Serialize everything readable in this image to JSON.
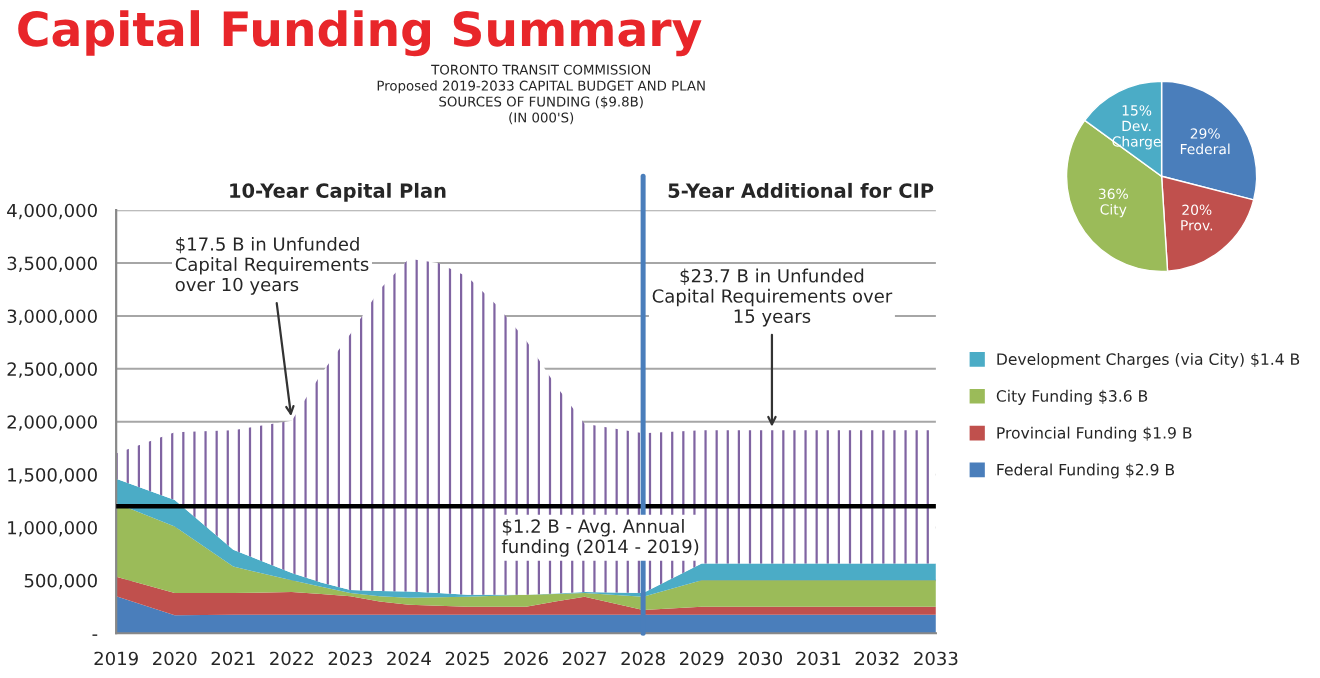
{
  "chart_data": [
    {
      "type": "area",
      "title": "Capital Funding Summary",
      "subtitle": "TORONTO TRANSIT COMMISSION\nProposed 2019-2033 CAPITAL BUDGET AND PLAN\nSOURCES OF FUNDING ($9.8B)\n(IN 000'S)",
      "stacked": true,
      "x": [
        2019,
        2020,
        2021,
        2022,
        2022.5,
        2023,
        2023.5,
        2024,
        2024.5,
        2025,
        2025.5,
        2026,
        2026.5,
        2027,
        2028,
        2029,
        2030,
        2031,
        2032,
        2033
      ],
      "series": [
        {
          "name": "Federal Funding $2.9 B",
          "color": "#4a7ebb",
          "values": [
            350000,
            170000,
            175000,
            175000,
            175000,
            175000,
            175000,
            175000,
            175000,
            175000,
            175000,
            175000,
            175000,
            175000,
            175000,
            175000,
            175000,
            175000,
            175000,
            175000
          ]
        },
        {
          "name": "Provincial Funding $1.9 B",
          "color": "#c0504d",
          "values": [
            185000,
            210000,
            205000,
            215000,
            195000,
            175000,
            125000,
            95000,
            85000,
            75000,
            75000,
            75000,
            125000,
            170000,
            45000,
            75000,
            75000,
            75000,
            75000,
            75000
          ]
        },
        {
          "name": "City Funding $3.6 B",
          "color": "#9bbb59",
          "values": [
            695000,
            630000,
            250000,
            110000,
            70000,
            30000,
            50000,
            65000,
            80000,
            95000,
            105000,
            115000,
            70000,
            35000,
            125000,
            250000,
            250000,
            250000,
            250000,
            250000
          ]
        },
        {
          "name": "Development Charges (via City) $1.4 B",
          "color": "#4bacc6",
          "values": [
            230000,
            250000,
            160000,
            70000,
            40000,
            30000,
            50000,
            60000,
            40000,
            20000,
            10000,
            0,
            5000,
            10000,
            35000,
            160000,
            160000,
            160000,
            160000,
            160000
          ]
        },
        {
          "color": "#8064a2",
          "values": [
            240000,
            640000,
            1130000,
            1440000,
            1970000,
            2420000,
            2850000,
            3145000,
            3120000,
            3005000,
            2735000,
            2405000,
            1975000,
            1590000,
            1510000,
            1260000,
            1260000,
            1260000,
            1260000,
            1260000
          ]
        }
      ],
      "xlim": [
        2019,
        2033
      ],
      "xticks": [
        2019,
        2020,
        2021,
        2022,
        2023,
        2024,
        2025,
        2026,
        2027,
        2028,
        2029,
        2030,
        2031,
        2032,
        2033
      ],
      "ylim": [
        0,
        4000000
      ],
      "yticks": [
        {
          "value": 0,
          "label": "-"
        },
        {
          "value": 500000,
          "label": "500,000"
        },
        {
          "value": 1000000,
          "label": "1,000,000"
        },
        {
          "value": 1500000,
          "label": "1,500,000"
        },
        {
          "value": 2000000,
          "label": "2,000,000"
        },
        {
          "value": 2500000,
          "label": "2,500,000"
        },
        {
          "value": 3000000,
          "label": "3,000,000"
        },
        {
          "value": 3500000,
          "label": "3,500,000"
        },
        {
          "value": 4000000,
          "label": "4,000,000"
        }
      ],
      "grid": "y",
      "legend": "right",
      "ref_lines": [
        {
          "axis": "y",
          "value": 1200000,
          "label": "$1.2 B - Avg. Annual\nfunding (2014 - 2019)",
          "color": "#000000"
        },
        {
          "axis": "x",
          "value": 2028,
          "color": "#4a7ebb"
        }
      ],
      "annotations": [
        "10-Year Capital Plan",
        "5-Year Additional for CIP",
        {
          "text": "$17.5 B in Unfunded\nCapital Requirements\nover 10 years",
          "x": 2022,
          "y": 2000000
        },
        {
          "text": "$23.7 B in Unfunded\nCapital Requirements over\n15 years",
          "x": 2030.2,
          "y": 1900000
        }
      ]
    },
    {
      "type": "pie",
      "categories": [
        "Federal",
        "Prov.",
        "City",
        "Dev.\nCharge"
      ],
      "values": [
        29,
        20,
        36,
        15
      ],
      "value_labels": [
        "29%",
        "20%",
        "36%",
        "15%"
      ],
      "colors": [
        "#4a7ebb",
        "#c0504d",
        "#9bbb59",
        "#4bacc6"
      ]
    }
  ]
}
